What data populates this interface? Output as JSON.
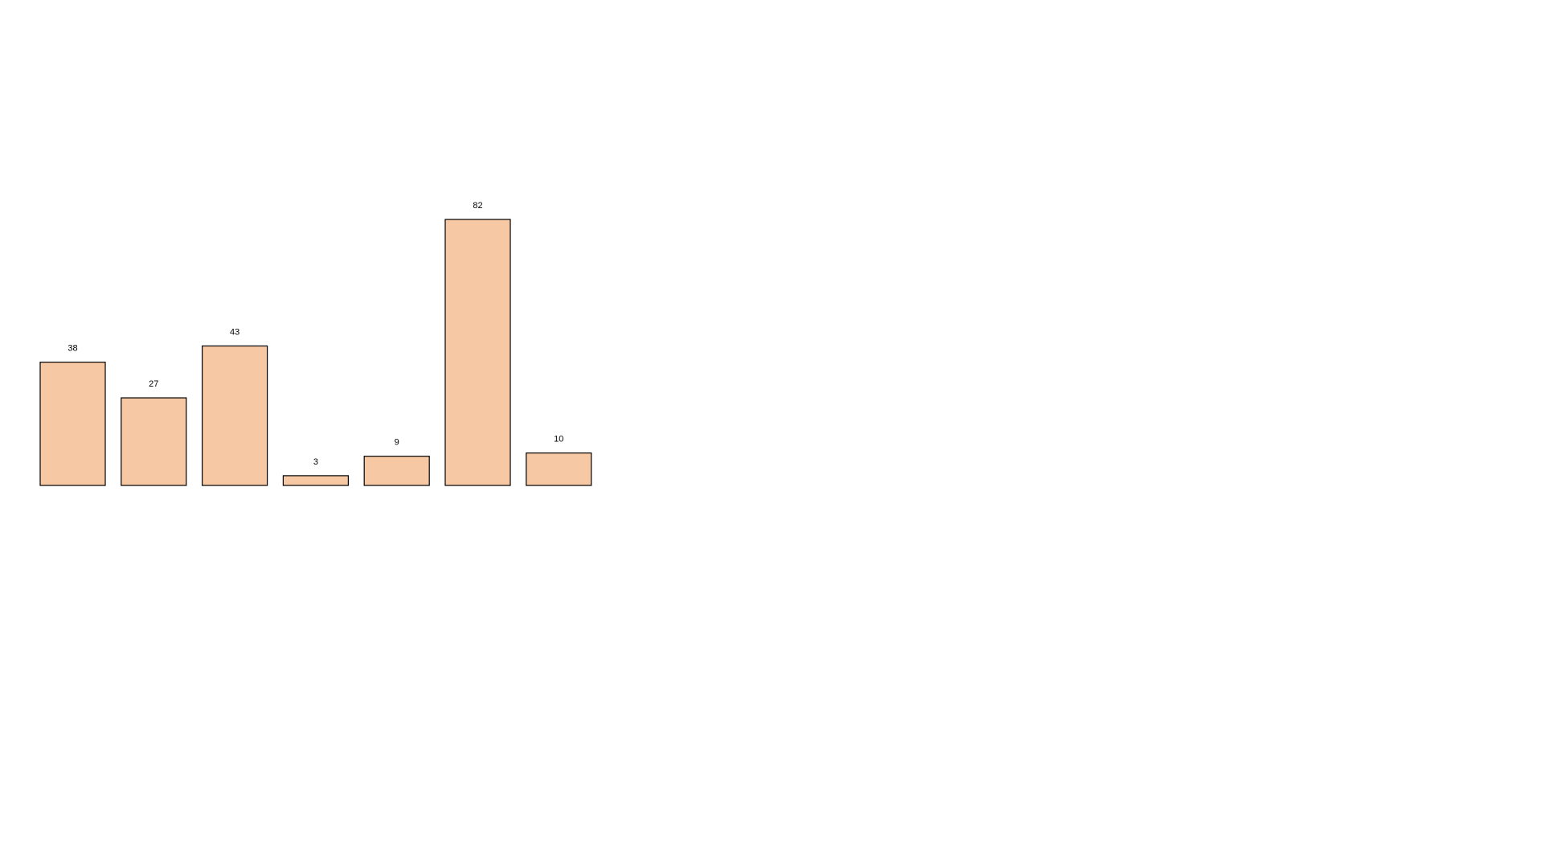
{
  "chart_data": {
    "type": "bar",
    "values": [
      38,
      27,
      43,
      3,
      9,
      82,
      10
    ],
    "data_labels": [
      "38",
      "27",
      "43",
      "3",
      "9",
      "82",
      "10"
    ],
    "ylim": [
      0,
      100
    ],
    "bar_color": "#F6C8A4",
    "bar_edge_color": "#000000",
    "grid": false,
    "axes_visible": false
  }
}
